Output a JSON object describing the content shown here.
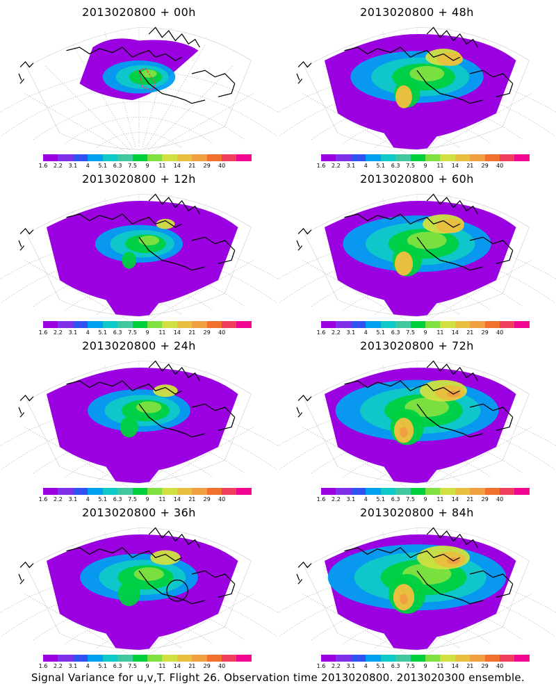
{
  "panels": [
    {
      "title": "2013020800  +  00h",
      "stage": 0
    },
    {
      "title": "2013020800  +  48h",
      "stage": 4
    },
    {
      "title": "2013020800  +  12h",
      "stage": 1
    },
    {
      "title": "2013020800  +  60h",
      "stage": 5
    },
    {
      "title": "2013020800  +  24h",
      "stage": 2
    },
    {
      "title": "2013020800  +  72h",
      "stage": 6
    },
    {
      "title": "2013020800  +  36h",
      "stage": 3
    },
    {
      "title": "2013020800  +  84h",
      "stage": 7
    }
  ],
  "colorbar": {
    "colors": [
      "#9b00e0",
      "#8030e8",
      "#3050f0",
      "#00a0f0",
      "#10c8c8",
      "#40c8a0",
      "#00d040",
      "#80e040",
      "#d0e040",
      "#e8c040",
      "#f0a040",
      "#f07030",
      "#f04060",
      "#f00890"
    ],
    "ticks": [
      "1.6",
      "2.2",
      "3.1",
      "4",
      "5.1",
      "6.3",
      "7.5",
      "9",
      "11",
      "14",
      "21",
      "29",
      "40"
    ]
  },
  "footer": "Signal Variance for u,v,T.  Flight 26.  Observation time 2013020800.  2013020300 ensemble."
}
